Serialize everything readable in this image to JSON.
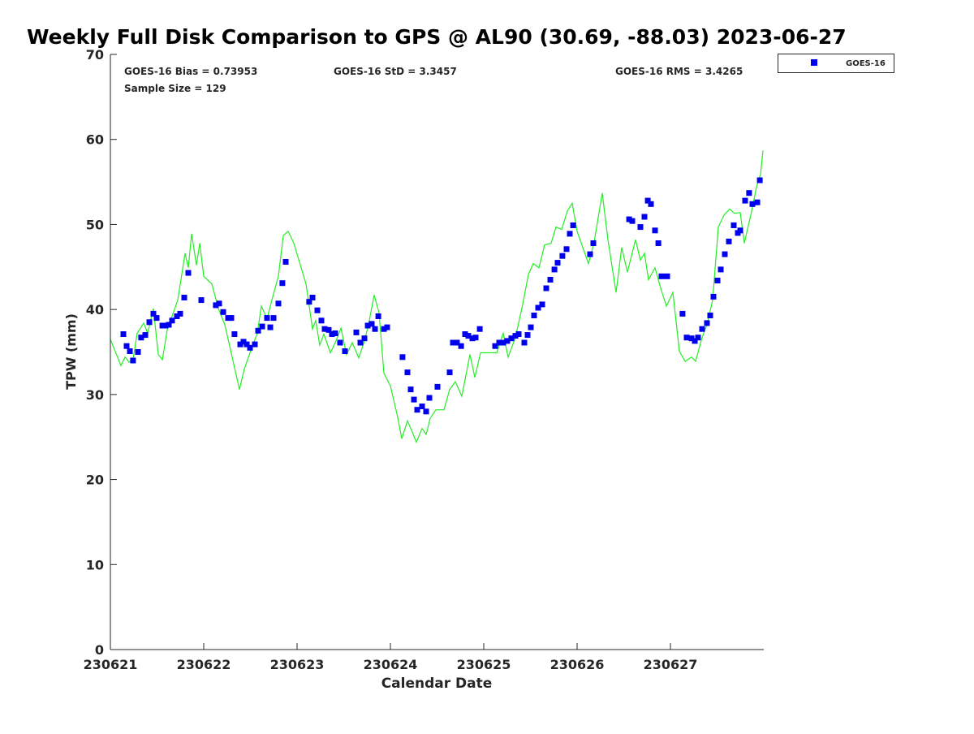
{
  "chart_data": {
    "type": "scatter",
    "title": "Weekly Full Disk Comparison to GPS @ AL90 (30.69, -88.03) 2023-06-27",
    "xlabel": "Calendar Date",
    "ylabel": "TPW (mm)",
    "xlim": [
      0,
      7
    ],
    "ylim": [
      0,
      70
    ],
    "x_unit": "days since 230621",
    "x_ticks": [
      0,
      1,
      2,
      3,
      4,
      5,
      6
    ],
    "x_tick_labels": [
      "230621",
      "230622",
      "230623",
      "230624",
      "230625",
      "230626",
      "230627"
    ],
    "y_ticks": [
      0,
      10,
      20,
      30,
      40,
      50,
      60,
      70
    ],
    "y_tick_labels": [
      "0",
      "10",
      "20",
      "30",
      "40",
      "50",
      "60",
      "70"
    ],
    "legend": {
      "position": "outside-top-right",
      "entries": [
        "GOES-16"
      ]
    },
    "stats": {
      "bias": "GOES-16 Bias = 0.73953",
      "std": "GOES-16 StD = 3.3457",
      "rms": "GOES-16 RMS = 3.4265",
      "sample": "Sample Size = 129"
    },
    "series": [
      {
        "name": "GOES-16",
        "kind": "scatter",
        "color": "#0000ee",
        "x": [
          0.139,
          0.174,
          0.209,
          0.243,
          0.296,
          0.33,
          0.374,
          0.417,
          0.461,
          0.496,
          0.557,
          0.591,
          0.626,
          0.661,
          0.713,
          0.748,
          0.791,
          0.835,
          0.974,
          1.13,
          1.165,
          1.209,
          1.261,
          1.296,
          1.33,
          1.391,
          1.426,
          1.461,
          1.496,
          1.548,
          1.583,
          1.626,
          1.678,
          1.713,
          1.748,
          1.8,
          1.843,
          1.878,
          2.13,
          2.165,
          2.217,
          2.261,
          2.296,
          2.339,
          2.374,
          2.409,
          2.461,
          2.513,
          2.635,
          2.678,
          2.722,
          2.757,
          2.8,
          2.835,
          2.87,
          2.93,
          2.965,
          3.13,
          3.183,
          3.217,
          3.252,
          3.287,
          3.339,
          3.383,
          3.417,
          3.504,
          3.635,
          3.67,
          3.713,
          3.757,
          3.8,
          3.835,
          3.878,
          3.913,
          3.957,
          4.122,
          4.165,
          4.209,
          4.252,
          4.296,
          4.339,
          4.374,
          4.435,
          4.47,
          4.504,
          4.539,
          4.583,
          4.626,
          4.67,
          4.713,
          4.757,
          4.791,
          4.843,
          4.887,
          4.922,
          4.957,
          5.139,
          5.174,
          5.557,
          5.591,
          5.678,
          5.722,
          5.757,
          5.791,
          5.835,
          5.87,
          5.904,
          5.965,
          6.13,
          6.174,
          6.226,
          6.261,
          6.296,
          6.339,
          6.391,
          6.426,
          6.461,
          6.504,
          6.539,
          6.583,
          6.626,
          6.678,
          6.722,
          6.748,
          6.8,
          6.843,
          6.878,
          6.93,
          6.957
        ],
        "y": [
          37.1,
          35.7,
          35.1,
          34.0,
          35.0,
          36.7,
          37.0,
          38.5,
          39.5,
          39.0,
          38.1,
          38.1,
          38.2,
          38.7,
          39.2,
          39.5,
          41.4,
          44.3,
          41.1,
          40.5,
          40.7,
          39.7,
          39.0,
          39.0,
          37.1,
          35.9,
          36.2,
          35.9,
          35.5,
          35.9,
          37.5,
          38.0,
          39.0,
          37.9,
          39.0,
          40.7,
          43.1,
          45.6,
          40.9,
          41.4,
          39.9,
          38.7,
          37.7,
          37.6,
          37.1,
          37.2,
          36.1,
          35.1,
          37.3,
          36.1,
          36.6,
          38.1,
          38.3,
          37.7,
          39.2,
          37.7,
          37.9,
          34.4,
          32.6,
          30.6,
          29.4,
          28.2,
          28.6,
          28.0,
          29.6,
          30.9,
          32.6,
          36.1,
          36.1,
          35.7,
          37.1,
          36.9,
          36.6,
          36.7,
          37.7,
          35.7,
          36.1,
          36.1,
          36.3,
          36.6,
          36.9,
          37.1,
          36.1,
          37.0,
          37.9,
          39.3,
          40.2,
          40.6,
          42.5,
          43.5,
          44.7,
          45.5,
          46.3,
          47.1,
          48.9,
          49.9,
          46.5,
          47.8,
          50.6,
          50.4,
          49.7,
          50.9,
          52.8,
          52.4,
          49.3,
          47.8,
          43.9,
          43.9,
          39.5,
          36.7,
          36.6,
          36.3,
          36.7,
          37.7,
          38.4,
          39.3,
          41.5,
          43.4,
          44.7,
          46.5,
          48.0,
          49.9,
          49.0,
          49.3,
          52.8,
          53.7,
          52.4,
          52.6,
          55.2
        ]
      },
      {
        "name": "GPS",
        "kind": "line",
        "color": "#22ee22",
        "x": [
          0,
          0.113,
          0.157,
          0.2,
          0.243,
          0.287,
          0.357,
          0.4,
          0.461,
          0.513,
          0.557,
          0.609,
          0.661,
          0.722,
          0.8,
          0.835,
          0.87,
          0.922,
          0.957,
          1.0,
          1.087,
          1.157,
          1.226,
          1.304,
          1.383,
          1.435,
          1.496,
          1.574,
          1.617,
          1.678,
          1.73,
          1.8,
          1.852,
          1.904,
          1.965,
          2.096,
          2.165,
          2.2,
          2.243,
          2.287,
          2.357,
          2.417,
          2.47,
          2.53,
          2.591,
          2.661,
          2.722,
          2.765,
          2.826,
          2.878,
          2.93,
          3.0,
          3.07,
          3.122,
          3.183,
          3.226,
          3.278,
          3.339,
          3.383,
          3.426,
          3.487,
          3.574,
          3.635,
          3.696,
          3.765,
          3.852,
          3.904,
          3.965,
          4.139,
          4.209,
          4.261,
          4.339,
          4.417,
          4.478,
          4.53,
          4.591,
          4.652,
          4.722,
          4.774,
          4.835,
          4.896,
          4.948,
          5.0,
          5.122,
          5.183,
          5.27,
          5.33,
          5.417,
          5.478,
          5.539,
          5.626,
          5.678,
          5.722,
          5.765,
          5.835,
          5.896,
          5.957,
          6.026,
          6.096,
          6.157,
          6.226,
          6.27,
          6.339,
          6.391,
          6.452,
          6.513,
          6.574,
          6.635,
          6.687,
          6.748,
          6.791,
          6.861,
          6.922,
          6.965,
          6.991
        ],
        "y": [
          36.5,
          33.4,
          34.4,
          33.8,
          34.1,
          37.2,
          38.4,
          37.2,
          40.1,
          34.7,
          34.1,
          37.6,
          39.2,
          41.1,
          46.6,
          44.9,
          48.9,
          45.2,
          47.8,
          43.9,
          43.0,
          40.1,
          38.2,
          34.4,
          30.6,
          33.0,
          34.9,
          37.2,
          40.4,
          38.9,
          41.1,
          43.9,
          48.7,
          49.2,
          47.8,
          43.0,
          37.7,
          38.7,
          35.8,
          37.1,
          34.9,
          36.3,
          37.8,
          34.7,
          36.1,
          34.3,
          36.3,
          38.2,
          41.7,
          39.6,
          32.5,
          31.0,
          27.7,
          24.8,
          26.9,
          25.8,
          24.4,
          26.0,
          25.3,
          27.2,
          28.2,
          28.2,
          30.6,
          31.5,
          29.8,
          34.7,
          32.0,
          34.9,
          34.9,
          37.2,
          34.4,
          36.7,
          40.6,
          44.1,
          45.4,
          44.9,
          47.6,
          47.8,
          49.7,
          49.4,
          51.6,
          52.5,
          49.2,
          45.4,
          47.9,
          53.7,
          48.2,
          42.0,
          47.3,
          44.4,
          48.2,
          45.8,
          46.6,
          43.5,
          44.9,
          42.5,
          40.4,
          42.0,
          35.1,
          33.9,
          34.4,
          33.9,
          36.7,
          38.2,
          41.1,
          49.7,
          51.1,
          51.8,
          51.3,
          51.4,
          47.8,
          51.1,
          54.4,
          55.9,
          58.7
        ]
      }
    ]
  }
}
